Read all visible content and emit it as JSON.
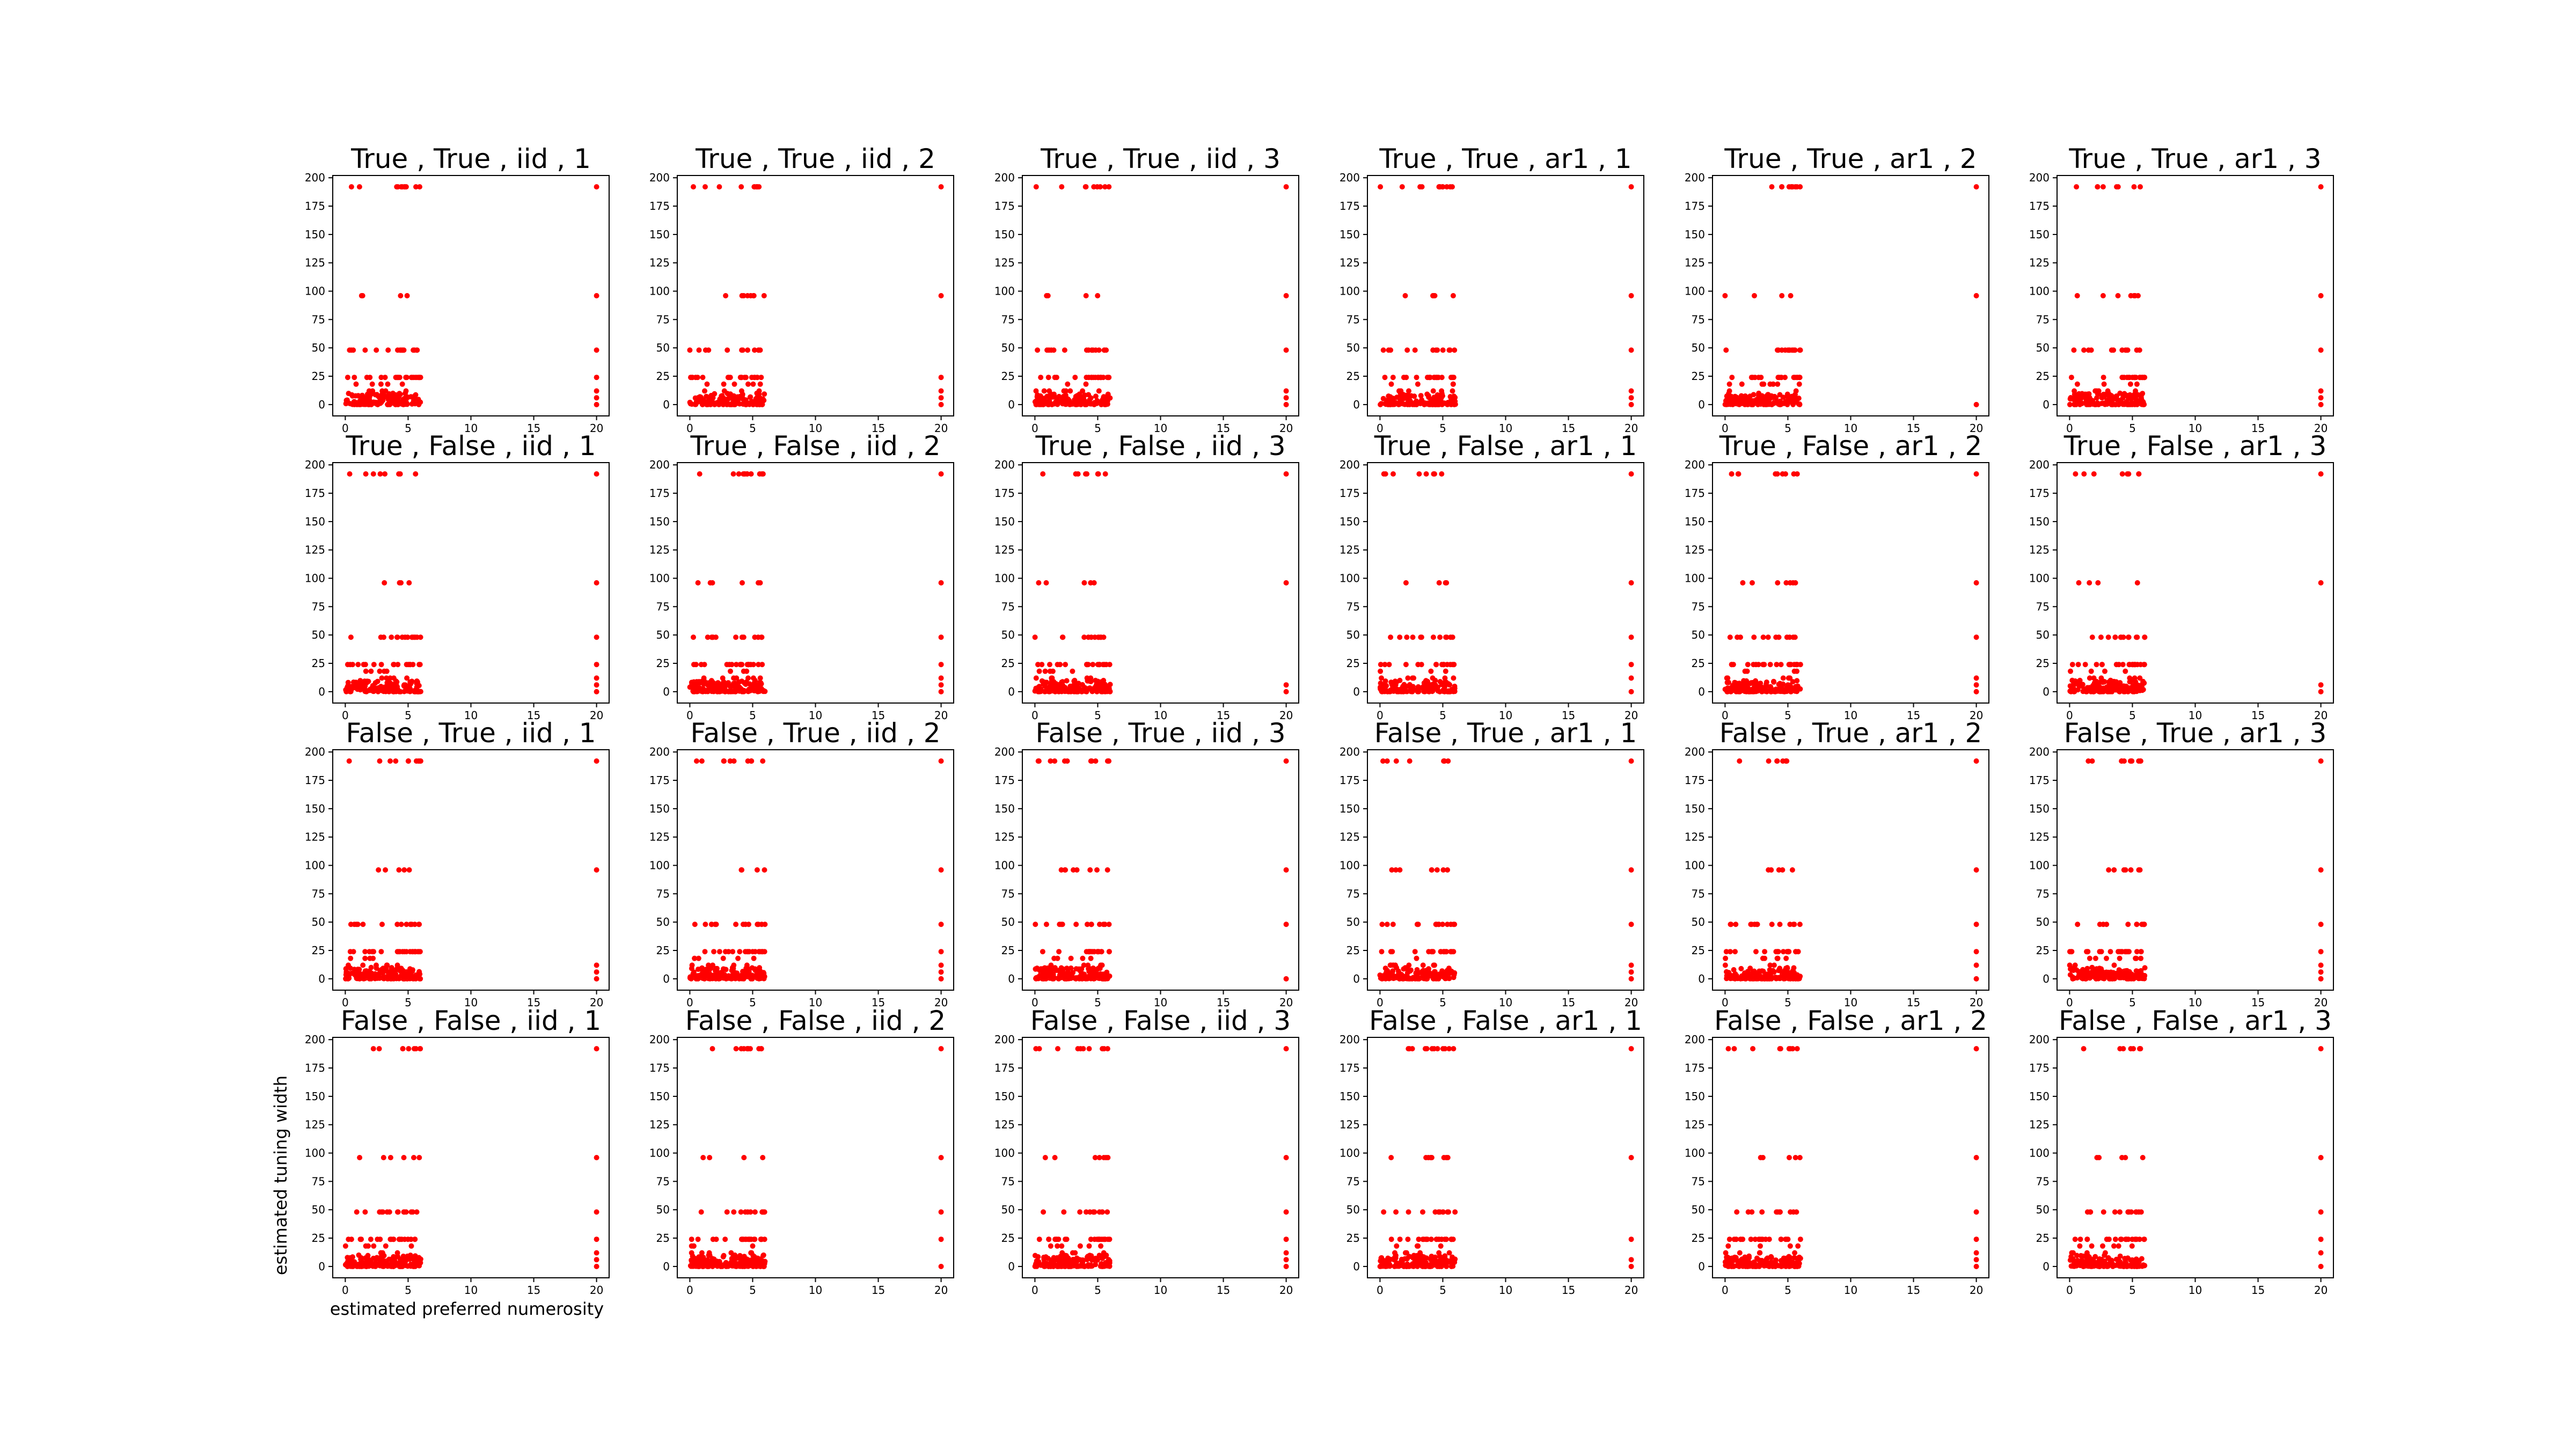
{
  "figure": {
    "xlabel": "estimated preferred numerosity",
    "ylabel": "estimated tuning width"
  },
  "chart_data": {
    "type": "scatter",
    "layout": "4x6 grid of scatter subplots",
    "marker_color": "#ff0000",
    "xlim": [
      -1,
      21
    ],
    "ylim": [
      -10,
      202
    ],
    "xticks": [
      0,
      5,
      10,
      15,
      20
    ],
    "yticks": [
      0,
      25,
      50,
      75,
      100,
      125,
      150,
      175,
      200
    ],
    "x_range_note": "points cluster at x 0-6 plus x=20",
    "y_levels": [
      192,
      96,
      48,
      24,
      12,
      6,
      3,
      1.5,
      0
    ],
    "panels": [
      {
        "title": "True , True , iid , 1"
      },
      {
        "title": "True , True , iid , 2"
      },
      {
        "title": "True , True , iid , 3"
      },
      {
        "title": "True , True , ar1 , 1"
      },
      {
        "title": "True , True , ar1 , 2"
      },
      {
        "title": "True , True , ar1 , 3"
      },
      {
        "title": "True , False , iid , 1"
      },
      {
        "title": "True , False , iid , 2"
      },
      {
        "title": "True , False , iid , 3"
      },
      {
        "title": "True , False , ar1 , 1"
      },
      {
        "title": "True , False , ar1 , 2"
      },
      {
        "title": "True , False , ar1 , 3"
      },
      {
        "title": "False , True , iid , 1"
      },
      {
        "title": "False , True , iid , 2"
      },
      {
        "title": "False , True , iid , 3"
      },
      {
        "title": "False , True , ar1 , 1"
      },
      {
        "title": "False , True , ar1 , 2"
      },
      {
        "title": "False , True , ar1 , 3"
      },
      {
        "title": "False , False , iid , 1"
      },
      {
        "title": "False , False , iid , 2"
      },
      {
        "title": "False , False , iid , 3"
      },
      {
        "title": "False , False , ar1 , 1"
      },
      {
        "title": "False , False , ar1 , 2"
      },
      {
        "title": "False , False , ar1 , 3"
      }
    ]
  }
}
